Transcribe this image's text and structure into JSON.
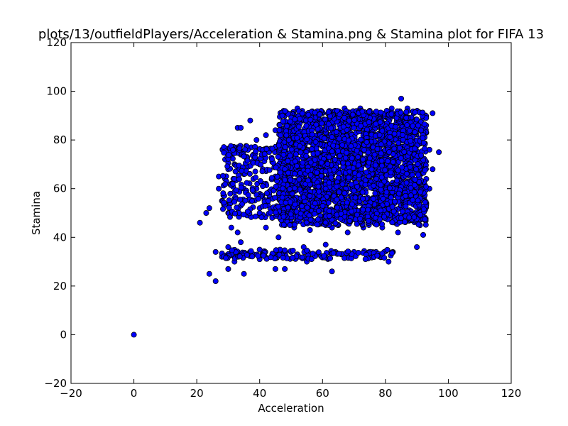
{
  "chart_data": {
    "type": "scatter",
    "title": "plots/13/outfieldPlayers/Acceleration & Stamina.png & Stamina plot for FIFA 13",
    "xlabel": "Acceleration",
    "ylabel": "Stamina",
    "xlim": [
      -20,
      120
    ],
    "ylim": [
      -20,
      120
    ],
    "xticks": [
      -20,
      0,
      20,
      40,
      60,
      80,
      100,
      120
    ],
    "yticks": [
      -20,
      0,
      20,
      40,
      60,
      80,
      100,
      120
    ],
    "grid": false,
    "marker_color": "#0000ff",
    "marker_edge_color": "#000000",
    "series": [
      {
        "values": [
          [
            0,
            0
          ],
          [
            21,
            46
          ],
          [
            23,
            50
          ],
          [
            24,
            52
          ],
          [
            24,
            25
          ],
          [
            26,
            22
          ],
          [
            26,
            34
          ],
          [
            27,
            60
          ],
          [
            27,
            65
          ],
          [
            28,
            32
          ],
          [
            28,
            55
          ],
          [
            29,
            64
          ],
          [
            29,
            72
          ],
          [
            30,
            36
          ],
          [
            30,
            27
          ],
          [
            30,
            50
          ],
          [
            30,
            68
          ],
          [
            31,
            33
          ],
          [
            31,
            44
          ],
          [
            31,
            62
          ],
          [
            32,
            30
          ],
          [
            32,
            70
          ],
          [
            32,
            56
          ],
          [
            33,
            77
          ],
          [
            33,
            42
          ],
          [
            33,
            34
          ],
          [
            33,
            85
          ],
          [
            34,
            38
          ],
          [
            34,
            74
          ],
          [
            34,
            53
          ],
          [
            34,
            85
          ],
          [
            35,
            25
          ],
          [
            35,
            60
          ],
          [
            35,
            66
          ],
          [
            36,
            49
          ],
          [
            36,
            73
          ],
          [
            37,
            88
          ],
          [
            37,
            55
          ],
          [
            38,
            33
          ],
          [
            38,
            74
          ],
          [
            38,
            64
          ],
          [
            39,
            60
          ],
          [
            39,
            80
          ],
          [
            40,
            31
          ],
          [
            40,
            52
          ],
          [
            40,
            70
          ],
          [
            41,
            68
          ],
          [
            41,
            34
          ],
          [
            42,
            82
          ],
          [
            42,
            44
          ],
          [
            42,
            62
          ],
          [
            43,
            75
          ],
          [
            43,
            58
          ],
          [
            44,
            71
          ],
          [
            44,
            33
          ],
          [
            44,
            48
          ],
          [
            45,
            65
          ],
          [
            45,
            27
          ],
          [
            45,
            84
          ],
          [
            46,
            76
          ],
          [
            46,
            60
          ],
          [
            46,
            40
          ],
          [
            47,
            55
          ],
          [
            47,
            70
          ],
          [
            47,
            33
          ],
          [
            48,
            90
          ],
          [
            48,
            62
          ],
          [
            48,
            45
          ],
          [
            48,
            27
          ],
          [
            49,
            80
          ],
          [
            49,
            58
          ],
          [
            49,
            67
          ],
          [
            50,
            74
          ],
          [
            50,
            52
          ],
          [
            50,
            34
          ],
          [
            51,
            86
          ],
          [
            51,
            62
          ],
          [
            51,
            44
          ],
          [
            52,
            70
          ],
          [
            52,
            33
          ],
          [
            52,
            93
          ],
          [
            53,
            78
          ],
          [
            53,
            55
          ],
          [
            53,
            48
          ],
          [
            54,
            66
          ],
          [
            54,
            88
          ],
          [
            54,
            36
          ],
          [
            55,
            73
          ],
          [
            55,
            57
          ],
          [
            55,
            30
          ],
          [
            56,
            82
          ],
          [
            56,
            63
          ],
          [
            56,
            43
          ],
          [
            57,
            69
          ],
          [
            57,
            90
          ],
          [
            57,
            51
          ],
          [
            58,
            76
          ],
          [
            58,
            60
          ],
          [
            58,
            33
          ],
          [
            59,
            86
          ],
          [
            59,
            54
          ],
          [
            59,
            72
          ],
          [
            60,
            65
          ],
          [
            60,
            48
          ],
          [
            60,
            91
          ],
          [
            61,
            78
          ],
          [
            61,
            58
          ],
          [
            61,
            37
          ],
          [
            62,
            70
          ],
          [
            62,
            85
          ],
          [
            62,
            51
          ],
          [
            63,
            63
          ],
          [
            63,
            44
          ],
          [
            63,
            26
          ],
          [
            64,
            80
          ],
          [
            64,
            56
          ],
          [
            64,
            92
          ],
          [
            65,
            68
          ],
          [
            65,
            74
          ],
          [
            65,
            45
          ],
          [
            66,
            87
          ],
          [
            66,
            60
          ],
          [
            66,
            33
          ],
          [
            67,
            76
          ],
          [
            67,
            52
          ],
          [
            67,
            93
          ],
          [
            68,
            65
          ],
          [
            68,
            82
          ],
          [
            68,
            42
          ],
          [
            69,
            71
          ],
          [
            69,
            57
          ],
          [
            69,
            90
          ],
          [
            70,
            78
          ],
          [
            70,
            62
          ],
          [
            70,
            34
          ],
          [
            71,
            86
          ],
          [
            71,
            50
          ],
          [
            71,
            68
          ],
          [
            72,
            74
          ],
          [
            72,
            58
          ],
          [
            72,
            93
          ],
          [
            73,
            81
          ],
          [
            73,
            64
          ],
          [
            73,
            44
          ],
          [
            74,
            70
          ],
          [
            74,
            88
          ],
          [
            74,
            33
          ],
          [
            75,
            76
          ],
          [
            75,
            55
          ],
          [
            75,
            92
          ],
          [
            76,
            83
          ],
          [
            76,
            62
          ],
          [
            76,
            47
          ],
          [
            77,
            68
          ],
          [
            77,
            90
          ],
          [
            77,
            34
          ],
          [
            78,
            79
          ],
          [
            78,
            57
          ],
          [
            78,
            72
          ],
          [
            79,
            86
          ],
          [
            79,
            63
          ],
          [
            79,
            44
          ],
          [
            80,
            74
          ],
          [
            80,
            91
          ],
          [
            80,
            52
          ],
          [
            81,
            66
          ],
          [
            81,
            83
          ],
          [
            81,
            30
          ],
          [
            82,
            77
          ],
          [
            82,
            58
          ],
          [
            82,
            93
          ],
          [
            83,
            70
          ],
          [
            83,
            86
          ],
          [
            83,
            46
          ],
          [
            84,
            62
          ],
          [
            84,
            80
          ],
          [
            84,
            42
          ],
          [
            85,
            73
          ],
          [
            85,
            97
          ],
          [
            85,
            55
          ],
          [
            86,
            88
          ],
          [
            86,
            65
          ],
          [
            86,
            50
          ],
          [
            87,
            78
          ],
          [
            87,
            60
          ],
          [
            87,
            93
          ],
          [
            88,
            70
          ],
          [
            88,
            84
          ],
          [
            88,
            47
          ],
          [
            89,
            63
          ],
          [
            89,
            76
          ],
          [
            89,
            91
          ],
          [
            90,
            55
          ],
          [
            90,
            85
          ],
          [
            90,
            36
          ],
          [
            91,
            67
          ],
          [
            91,
            45
          ],
          [
            91,
            80
          ],
          [
            92,
            58
          ],
          [
            92,
            72
          ],
          [
            92,
            41
          ],
          [
            93,
            64
          ],
          [
            93,
            83
          ],
          [
            93,
            54
          ],
          [
            94,
            60
          ],
          [
            94,
            76
          ],
          [
            95,
            68
          ],
          [
            95,
            91
          ],
          [
            97,
            75
          ]
        ]
      }
    ]
  }
}
